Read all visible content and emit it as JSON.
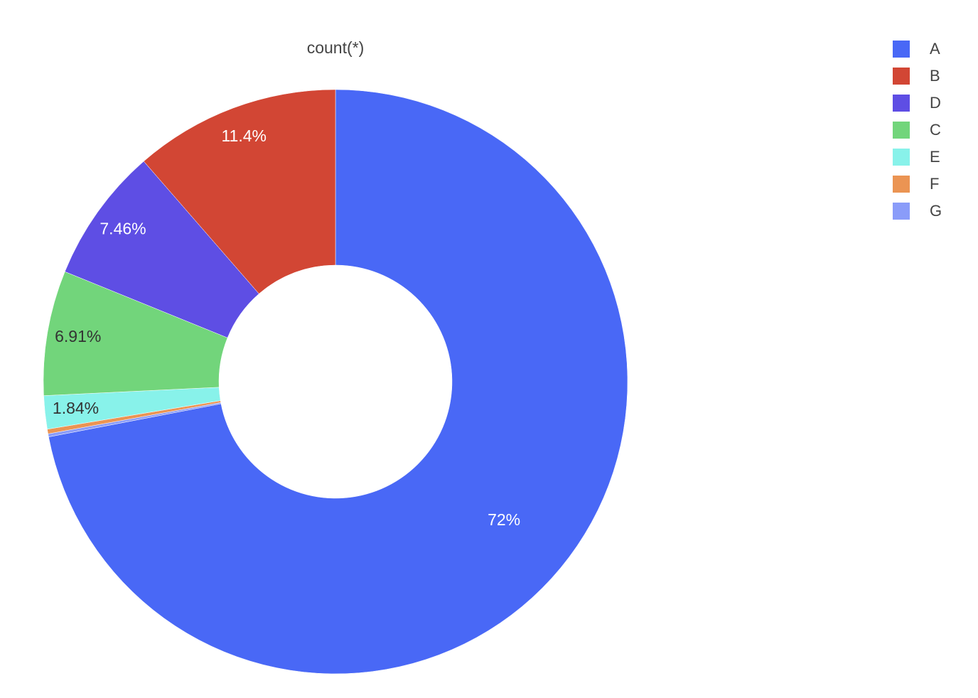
{
  "chart_data": {
    "type": "pie",
    "hole": true,
    "title": "count(*)",
    "slices": [
      {
        "label": "A",
        "percent": 72.0,
        "text": "72%",
        "color": "#4968f6",
        "text_color": "#ffffff"
      },
      {
        "label": "G",
        "percent": 0.17,
        "text": "",
        "color": "#8a9cf9",
        "text_color": "#444444"
      },
      {
        "label": "F",
        "percent": 0.256,
        "text": "",
        "color": "#eb9453",
        "text_color": "#444444"
      },
      {
        "label": "E",
        "percent": 1.84,
        "text": "1.84%",
        "color": "#88f2ea",
        "text_color": "#333333"
      },
      {
        "label": "C",
        "percent": 6.91,
        "text": "6.91%",
        "color": "#72d57b",
        "text_color": "#333333"
      },
      {
        "label": "D",
        "percent": 7.46,
        "text": "7.46%",
        "color": "#5e4ee4",
        "text_color": "#ffffff"
      },
      {
        "label": "B",
        "percent": 11.4,
        "text": "11.4%",
        "color": "#d24634",
        "text_color": "#ffffff"
      }
    ],
    "legend": [
      {
        "label": "A",
        "color": "#4968f6"
      },
      {
        "label": "B",
        "color": "#d24634"
      },
      {
        "label": "D",
        "color": "#5e4ee4"
      },
      {
        "label": "C",
        "color": "#72d57b"
      },
      {
        "label": "E",
        "color": "#88f2ea"
      },
      {
        "label": "F",
        "color": "#eb9453"
      },
      {
        "label": "G",
        "color": "#8a9cf9"
      }
    ],
    "legend_position": "top-right",
    "direction": "clockwise",
    "start": "top"
  }
}
